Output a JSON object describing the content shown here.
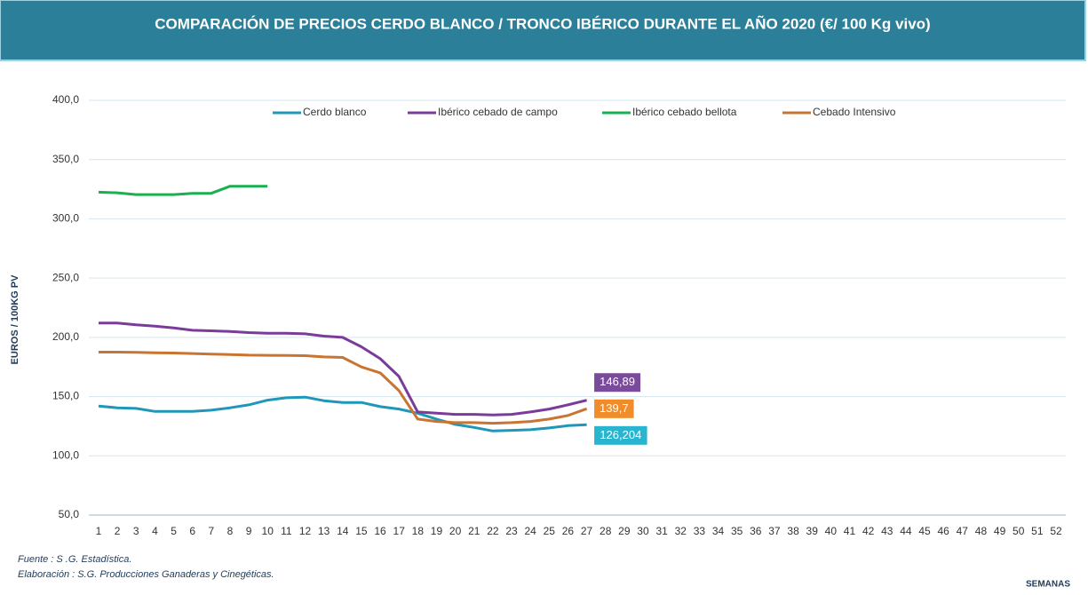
{
  "chart_data": {
    "type": "line",
    "title": "COMPARACIÓN DE PRECIOS CERDO BLANCO / TRONCO IBÉRICO DURANTE EL AÑO 2020 (€/ 100 Kg vivo)",
    "y_label": "EUROS / 100KG PV",
    "x_label": "SEMANAS",
    "source": "Fuente :  S .G. Estadística.",
    "elaboration": "Elaboración : S.G. Producciones Ganaderas y Cinegéticas.",
    "categories": [
      "1",
      "2",
      "3",
      "4",
      "5",
      "6",
      "7",
      "8",
      "9",
      "10",
      "11",
      "12",
      "13",
      "14",
      "15",
      "16",
      "17",
      "18",
      "19",
      "20",
      "21",
      "22",
      "23",
      "24",
      "25",
      "26",
      "27",
      "28",
      "29",
      "30",
      "31",
      "32",
      "33",
      "34",
      "35",
      "36",
      "37",
      "38",
      "39",
      "40",
      "41",
      "42",
      "43",
      "44",
      "45",
      "46",
      "47",
      "48",
      "49",
      "50",
      "51",
      "52"
    ],
    "ylim": [
      50,
      400
    ],
    "yticks": [
      {
        "value": 50,
        "label": "50,0"
      },
      {
        "value": 100,
        "label": "100,0"
      },
      {
        "value": 150,
        "label": "150,0"
      },
      {
        "value": 200,
        "label": "200,0"
      },
      {
        "value": 250,
        "label": "250,0"
      },
      {
        "value": 300,
        "label": "300,0"
      },
      {
        "value": 350,
        "label": "350,0"
      },
      {
        "value": 400,
        "label": "400,0"
      }
    ],
    "grid": true,
    "legend": "top",
    "series": [
      {
        "name": "Cerdo blanco",
        "color": "#1f97b8",
        "label_color": "#29b4d0",
        "values": [
          142,
          140.5,
          140,
          137.5,
          137.5,
          137.5,
          138.5,
          140.5,
          143,
          147,
          149,
          149.5,
          146.5,
          145,
          145,
          141.5,
          139.5,
          136,
          131,
          126.5,
          124,
          121,
          121.5,
          122,
          123.5,
          125.5,
          126.204,
          null,
          null,
          null,
          null,
          null,
          null,
          null,
          null,
          null,
          null,
          null,
          null,
          null,
          null,
          null,
          null,
          null,
          null,
          null,
          null,
          null,
          null,
          null,
          null,
          null
        ],
        "value_labels": [
          null,
          null,
          null,
          null,
          null,
          null,
          null,
          null,
          null,
          null,
          null,
          null,
          null,
          null,
          null,
          null,
          null,
          null,
          null,
          null,
          null,
          null,
          null,
          null,
          null,
          null,
          "126,204",
          null,
          null,
          null,
          null,
          null,
          null,
          null,
          null,
          null,
          null,
          null,
          null,
          null,
          null,
          null,
          null,
          null,
          null,
          null,
          null,
          null,
          null,
          null,
          null,
          null
        ]
      },
      {
        "name": "Ibérico cebado de campo",
        "color": "#7a3b9a",
        "label_color": "#7b4b9b",
        "values": [
          212,
          212,
          210.5,
          209.5,
          208,
          206,
          205.5,
          205,
          204,
          203.5,
          203.5,
          203,
          201,
          200,
          192,
          182,
          167,
          137,
          136,
          135,
          135,
          134.5,
          135,
          137,
          139.5,
          143,
          146.89,
          null,
          null,
          null,
          null,
          null,
          null,
          null,
          null,
          null,
          null,
          null,
          null,
          null,
          null,
          null,
          null,
          null,
          null,
          null,
          null,
          null,
          null,
          null,
          null,
          null
        ],
        "value_labels": [
          null,
          null,
          null,
          null,
          null,
          null,
          null,
          null,
          null,
          null,
          null,
          null,
          null,
          null,
          null,
          null,
          null,
          null,
          null,
          null,
          null,
          null,
          null,
          null,
          null,
          null,
          "146,89",
          null,
          null,
          null,
          null,
          null,
          null,
          null,
          null,
          null,
          null,
          null,
          null,
          null,
          null,
          null,
          null,
          null,
          null,
          null,
          null,
          null,
          null,
          null,
          null,
          null
        ]
      },
      {
        "name": "Ibérico cebado bellota",
        "color": "#1aaf50",
        "values": [
          322.5,
          322,
          320.5,
          320.5,
          320.5,
          321.5,
          321.5,
          327.5,
          327.5,
          327.5,
          null,
          null,
          null,
          null,
          null,
          null,
          null,
          null,
          null,
          null,
          null,
          null,
          null,
          null,
          null,
          null,
          null,
          null,
          null,
          null,
          null,
          null,
          null,
          null,
          null,
          null,
          null,
          null,
          null,
          null,
          null,
          null,
          null,
          null,
          null,
          null,
          null,
          null,
          null,
          null,
          null,
          null
        ]
      },
      {
        "name": "Cebado Intensivo",
        "color": "#c87533",
        "label_color": "#f08c2a",
        "values": [
          187.5,
          187.5,
          187.3,
          187,
          186.8,
          186.3,
          185.8,
          185.5,
          185,
          184.8,
          184.7,
          184.5,
          183.5,
          183,
          175,
          170,
          155,
          131,
          129,
          128,
          128,
          127.5,
          128,
          129,
          131,
          134,
          139.7,
          null,
          null,
          null,
          null,
          null,
          null,
          null,
          null,
          null,
          null,
          null,
          null,
          null,
          null,
          null,
          null,
          null,
          null,
          null,
          null,
          null,
          null,
          null,
          null,
          null
        ],
        "value_labels": [
          null,
          null,
          null,
          null,
          null,
          null,
          null,
          null,
          null,
          null,
          null,
          null,
          null,
          null,
          null,
          null,
          null,
          null,
          null,
          null,
          null,
          null,
          null,
          null,
          null,
          null,
          "139,7",
          null,
          null,
          null,
          null,
          null,
          null,
          null,
          null,
          null,
          null,
          null,
          null,
          null,
          null,
          null,
          null,
          null,
          null,
          null,
          null,
          null,
          null,
          null,
          null,
          null
        ]
      }
    ]
  }
}
